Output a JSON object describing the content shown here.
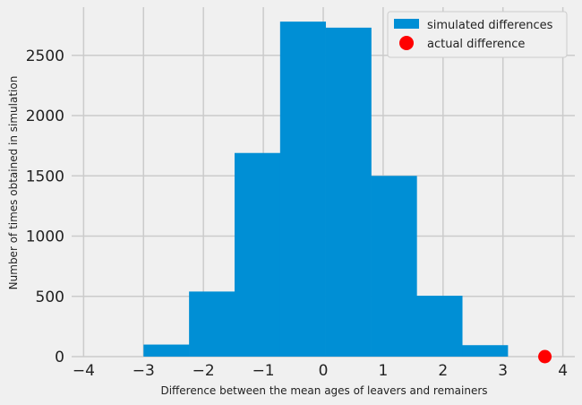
{
  "chart_data": {
    "type": "bar",
    "title": "",
    "xlabel": "Difference between the mean ages of leavers and remainers",
    "ylabel": "Number of times obtained in simulation",
    "xlim": [
      -4.2,
      4.2
    ],
    "ylim": [
      0,
      2900
    ],
    "xticks": [
      -4,
      -3,
      -2,
      -1,
      0,
      1,
      2,
      3,
      4
    ],
    "xtick_labels": [
      "−4",
      "−3",
      "−2",
      "−1",
      "0",
      "1",
      "2",
      "3",
      "4"
    ],
    "yticks": [
      0,
      500,
      1000,
      1500,
      2000,
      2500
    ],
    "ytick_labels": [
      "0",
      "500",
      "1000",
      "1500",
      "2000",
      "2500"
    ],
    "grid": true,
    "series": [
      {
        "name": "simulated differences",
        "kind": "histogram",
        "color": "#008fd5",
        "bins": [
          {
            "start": -3.0,
            "end": -2.24,
            "count": 100
          },
          {
            "start": -2.24,
            "end": -1.48,
            "count": 540
          },
          {
            "start": -1.48,
            "end": -0.72,
            "count": 1690
          },
          {
            "start": -0.72,
            "end": 0.04,
            "count": 2780
          },
          {
            "start": 0.04,
            "end": 0.8,
            "count": 2730
          },
          {
            "start": 0.8,
            "end": 1.56,
            "count": 1500
          },
          {
            "start": 1.56,
            "end": 2.32,
            "count": 505
          },
          {
            "start": 2.32,
            "end": 3.08,
            "count": 95
          }
        ]
      },
      {
        "name": "actual difference",
        "kind": "scatter",
        "color": "#ff0000",
        "points": [
          {
            "x": 3.7,
            "y": 0
          }
        ]
      }
    ],
    "legend": {
      "position": "top-right",
      "entries": [
        "simulated differences",
        "actual difference"
      ]
    }
  }
}
